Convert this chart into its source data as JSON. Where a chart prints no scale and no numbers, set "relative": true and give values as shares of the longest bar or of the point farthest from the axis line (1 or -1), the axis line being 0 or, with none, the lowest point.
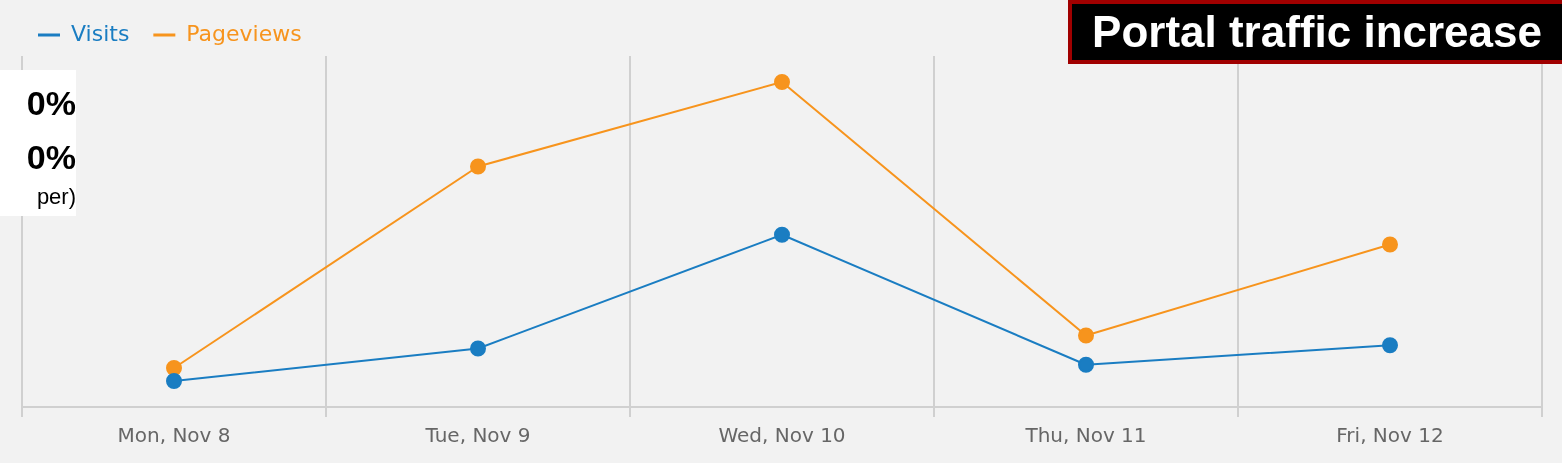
{
  "chart_data": {
    "type": "line",
    "title": "Portal traffic increase",
    "annotations": [
      "0%",
      "0%",
      "per)"
    ],
    "categories": [
      "Mon, Nov 8",
      "Tue, Nov 9",
      "Wed, Nov 10",
      "Thu, Nov 11",
      "Fri, Nov 12"
    ],
    "relative": true,
    "legend": "top left",
    "grid": "x",
    "marker": "circle",
    "line_style": "solid",
    "series": [
      {
        "name": "Visits",
        "color": "#1a7dc2",
        "values": [
          0.08,
          0.18,
          0.53,
          0.13,
          0.19
        ]
      },
      {
        "name": "Pageviews",
        "color": "#f7941d",
        "values": [
          0.12,
          0.74,
          1,
          0.22,
          0.5
        ]
      }
    ]
  }
}
